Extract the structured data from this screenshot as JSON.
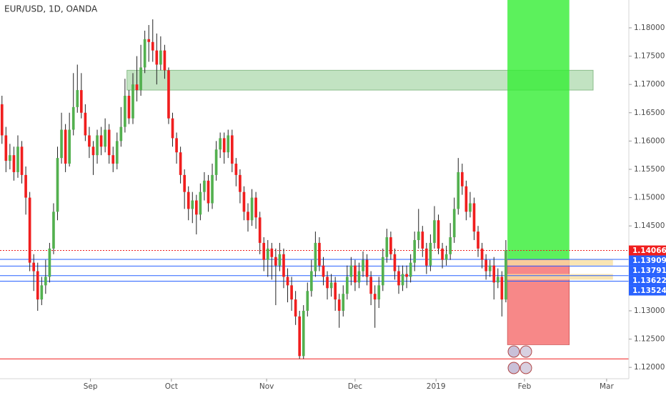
{
  "chart_data": {
    "type": "candlestick",
    "title": "EUR/USD, 1D, OANDA",
    "up_color": "#53b04f",
    "down_color": "#f01e1e",
    "wick_color": "#222222",
    "open": [
      1.1665,
      1.161,
      1.1565,
      1.1575,
      1.1545,
      1.159,
      1.154,
      1.15,
      1.1385,
      1.137,
      1.132,
      1.1345,
      1.136,
      1.141,
      1.1475,
      1.157,
      1.162,
      1.156,
      1.162,
      1.166,
      1.169,
      1.165,
      1.161,
      1.159,
      1.1575,
      1.161,
      1.159,
      1.162,
      1.1575,
      1.156,
      1.16,
      1.1625,
      1.168,
      1.164,
      1.17,
      1.169,
      1.173,
      1.178,
      1.1775,
      1.176,
      1.1735,
      1.176,
      1.1725,
      1.164,
      1.1605,
      1.158,
      1.154,
      1.151,
      1.148,
      1.1495,
      1.147,
      1.151,
      1.153,
      1.149,
      1.154,
      1.1585,
      1.1605,
      1.158,
      1.161,
      1.156,
      1.154,
      1.151,
      1.1475,
      1.146,
      1.15,
      1.1465,
      1.142,
      1.139,
      1.141,
      1.1395,
      1.138,
      1.14,
      1.136,
      1.1345,
      1.132,
      1.129,
      1.122,
      1.13,
      1.1335,
      1.137,
      1.142,
      1.138,
      1.136,
      1.134,
      1.135,
      1.132,
      1.13,
      1.133,
      1.136,
      1.138,
      1.135,
      1.137,
      1.139,
      1.136,
      1.133,
      1.132,
      1.1345,
      1.1395,
      1.143,
      1.14,
      1.137,
      1.1345,
      1.1365,
      1.136,
      1.1385,
      1.1425,
      1.144,
      1.141,
      1.138,
      1.142,
      1.146,
      1.141,
      1.139,
      1.14,
      1.143,
      1.148,
      1.1545,
      1.152,
      1.1475,
      1.149,
      1.144,
      1.141,
      1.139,
      1.137,
      1.138,
      1.135,
      1.136,
      1.132
    ],
    "high": [
      1.168,
      1.1625,
      1.1595,
      1.159,
      1.161,
      1.16,
      1.1555,
      1.151,
      1.14,
      1.1385,
      1.136,
      1.139,
      1.142,
      1.149,
      1.159,
      1.165,
      1.163,
      1.165,
      1.172,
      1.1735,
      1.172,
      1.1665,
      1.1625,
      1.16,
      1.162,
      1.1625,
      1.164,
      1.163,
      1.159,
      1.1615,
      1.166,
      1.171,
      1.169,
      1.172,
      1.175,
      1.177,
      1.1795,
      1.1805,
      1.1815,
      1.179,
      1.1785,
      1.177,
      1.173,
      1.165,
      1.1615,
      1.159,
      1.155,
      1.152,
      1.151,
      1.1505,
      1.1525,
      1.1545,
      1.154,
      1.156,
      1.16,
      1.1615,
      1.1615,
      1.162,
      1.162,
      1.157,
      1.155,
      1.152,
      1.149,
      1.1515,
      1.151,
      1.1475,
      1.143,
      1.1425,
      1.142,
      1.141,
      1.142,
      1.141,
      1.1375,
      1.136,
      1.1335,
      1.13,
      1.131,
      1.135,
      1.139,
      1.144,
      1.143,
      1.1395,
      1.137,
      1.1365,
      1.136,
      1.133,
      1.1345,
      1.138,
      1.1395,
      1.139,
      1.1385,
      1.1405,
      1.14,
      1.137,
      1.1345,
      1.136,
      1.141,
      1.1445,
      1.144,
      1.141,
      1.138,
      1.138,
      1.138,
      1.14,
      1.144,
      1.148,
      1.145,
      1.142,
      1.1435,
      1.1485,
      1.147,
      1.142,
      1.1415,
      1.1455,
      1.15,
      1.157,
      1.156,
      1.153,
      1.151,
      1.15,
      1.145,
      1.142,
      1.14,
      1.139,
      1.1395,
      1.1375,
      1.137,
      1.1425
    ],
    "low": [
      1.1595,
      1.1545,
      1.155,
      1.153,
      1.1535,
      1.1525,
      1.147,
      1.137,
      1.1335,
      1.13,
      1.131,
      1.133,
      1.135,
      1.14,
      1.146,
      1.156,
      1.1545,
      1.1555,
      1.161,
      1.165,
      1.164,
      1.16,
      1.157,
      1.154,
      1.156,
      1.1575,
      1.158,
      1.156,
      1.1545,
      1.155,
      1.159,
      1.1615,
      1.163,
      1.163,
      1.167,
      1.168,
      1.172,
      1.174,
      1.174,
      1.17,
      1.1725,
      1.171,
      1.163,
      1.159,
      1.156,
      1.1525,
      1.148,
      1.146,
      1.1455,
      1.1435,
      1.146,
      1.1495,
      1.1475,
      1.148,
      1.153,
      1.157,
      1.156,
      1.157,
      1.1545,
      1.152,
      1.149,
      1.146,
      1.144,
      1.145,
      1.1445,
      1.14,
      1.137,
      1.136,
      1.1355,
      1.131,
      1.137,
      1.134,
      1.1315,
      1.13,
      1.1275,
      1.1215,
      1.1215,
      1.129,
      1.1325,
      1.136,
      1.137,
      1.1345,
      1.132,
      1.1325,
      1.13,
      1.127,
      1.129,
      1.132,
      1.1345,
      1.1335,
      1.134,
      1.136,
      1.1345,
      1.131,
      1.127,
      1.1305,
      1.1335,
      1.1385,
      1.139,
      1.1355,
      1.133,
      1.1335,
      1.134,
      1.135,
      1.137,
      1.141,
      1.1395,
      1.1365,
      1.137,
      1.141,
      1.14,
      1.1375,
      1.138,
      1.139,
      1.142,
      1.147,
      1.1505,
      1.146,
      1.1465,
      1.1425,
      1.1395,
      1.1375,
      1.1355,
      1.136,
      1.132,
      1.134,
      1.129,
      1.1315
    ],
    "close": [
      1.161,
      1.1565,
      1.1575,
      1.1545,
      1.159,
      1.154,
      1.15,
      1.1385,
      1.137,
      1.132,
      1.1345,
      1.136,
      1.141,
      1.1475,
      1.157,
      1.162,
      1.156,
      1.162,
      1.166,
      1.169,
      1.165,
      1.161,
      1.159,
      1.1575,
      1.161,
      1.159,
      1.162,
      1.1575,
      1.156,
      1.16,
      1.1625,
      1.168,
      1.164,
      1.17,
      1.169,
      1.173,
      1.178,
      1.1775,
      1.176,
      1.1735,
      1.176,
      1.1725,
      1.164,
      1.1605,
      1.158,
      1.154,
      1.151,
      1.148,
      1.1495,
      1.147,
      1.151,
      1.153,
      1.149,
      1.154,
      1.1585,
      1.1605,
      1.158,
      1.161,
      1.156,
      1.154,
      1.151,
      1.1475,
      1.146,
      1.15,
      1.1465,
      1.142,
      1.139,
      1.141,
      1.1395,
      1.138,
      1.14,
      1.136,
      1.1345,
      1.132,
      1.129,
      1.122,
      1.13,
      1.1335,
      1.137,
      1.142,
      1.138,
      1.136,
      1.134,
      1.135,
      1.132,
      1.13,
      1.133,
      1.136,
      1.138,
      1.135,
      1.137,
      1.139,
      1.136,
      1.133,
      1.132,
      1.1345,
      1.1395,
      1.143,
      1.14,
      1.137,
      1.1345,
      1.1365,
      1.136,
      1.1385,
      1.1425,
      1.144,
      1.141,
      1.138,
      1.142,
      1.146,
      1.141,
      1.139,
      1.14,
      1.143,
      1.148,
      1.1545,
      1.152,
      1.1475,
      1.149,
      1.144,
      1.141,
      1.139,
      1.137,
      1.138,
      1.135,
      1.136,
      1.132,
      1.14066
    ],
    "xlim": [
      -0.5,
      158
    ],
    "xticks": [
      {
        "value": 22.3,
        "label": "Sep"
      },
      {
        "value": 42.7,
        "label": "Oct"
      },
      {
        "value": 66.7,
        "label": "Nov"
      },
      {
        "value": 89.0,
        "label": "Dec"
      },
      {
        "value": 109.4,
        "label": "2019"
      },
      {
        "value": 131.7,
        "label": "Feb"
      },
      {
        "value": 152.4,
        "label": "Mar"
      }
    ],
    "ylim": [
      1.118,
      1.18492
    ],
    "yticks": [
      {
        "value": 1.18,
        "label": "1.18000"
      },
      {
        "value": 1.175,
        "label": "1.17500"
      },
      {
        "value": 1.17,
        "label": "1.17000"
      },
      {
        "value": 1.165,
        "label": "1.16500"
      },
      {
        "value": 1.16,
        "label": "1.16000"
      },
      {
        "value": 1.155,
        "label": "1.15500"
      },
      {
        "value": 1.15,
        "label": "1.15000"
      },
      {
        "value": 1.145,
        "label": "1.14500"
      },
      {
        "value": 1.14,
        "label": "1.14000"
      },
      {
        "value": 1.135,
        "label": "1.13500"
      },
      {
        "value": 1.13,
        "label": "1.13000"
      },
      {
        "value": 1.125,
        "label": "1.12500"
      },
      {
        "value": 1.12,
        "label": "1.12000"
      }
    ],
    "grid": false,
    "zones": [
      {
        "ylim": [
          1.169,
          1.1725
        ],
        "xlim": [
          31.5,
          149
        ],
        "color": "#8fcc8f"
      }
    ],
    "position": {
      "entry": 1.139,
      "stop": 1.124,
      "xlim": [
        127.4,
        143
      ],
      "profit_color": "#33ee33",
      "loss_color": "#f56a6a"
    },
    "bands": [
      {
        "ylim": [
          1.138,
          1.139
        ],
        "xlim": [
          127.4,
          154
        ],
        "color": "#f8dfa0"
      },
      {
        "ylim": [
          1.1355,
          1.1365
        ],
        "xlim": [
          127.4,
          154
        ],
        "color": "#f8dfa0"
      }
    ],
    "hlines": [
      {
        "value": 1.14066,
        "label": "1.14066",
        "color": "#f01e1e",
        "style": "dotted"
      },
      {
        "value": 1.13909,
        "label": "1.13909",
        "color": "#2962ff",
        "style": "solid"
      },
      {
        "value": 1.13791,
        "label": "1.13791",
        "color": "#2962ff",
        "style": "solid"
      },
      {
        "value": 1.13622,
        "label": "1.13622",
        "color": "#2962ff",
        "style": "solid"
      },
      {
        "value": 1.13524,
        "label": "1.13524",
        "color": "#2962ff",
        "style": "solid"
      },
      {
        "value": 1.1215,
        "color": "#f01e1e",
        "style": "solid"
      }
    ]
  }
}
